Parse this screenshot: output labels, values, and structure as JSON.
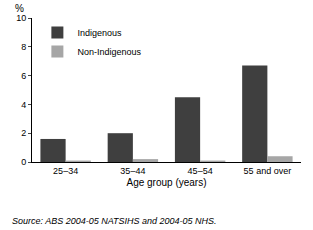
{
  "chart_data": {
    "type": "bar",
    "y_label": "%",
    "x_label": "Age group (years)",
    "categories": [
      "25–34",
      "35–44",
      "45–54",
      "55 and over"
    ],
    "series": [
      {
        "name": "Indigenous",
        "color": "#3f3f3f",
        "values": [
          1.6,
          2.0,
          4.5,
          6.7
        ]
      },
      {
        "name": "Non-Indigenous",
        "color": "#a6a6a6",
        "values": [
          0.1,
          0.2,
          0.1,
          0.4
        ]
      }
    ],
    "ylim": [
      0,
      10
    ],
    "yticks": [
      0,
      2,
      4,
      6,
      8,
      10
    ],
    "grid": true,
    "legend": "top-left",
    "annotations": [
      "Source: ABS 2004-05 NATSIHS and 2004-05 NHS."
    ]
  }
}
